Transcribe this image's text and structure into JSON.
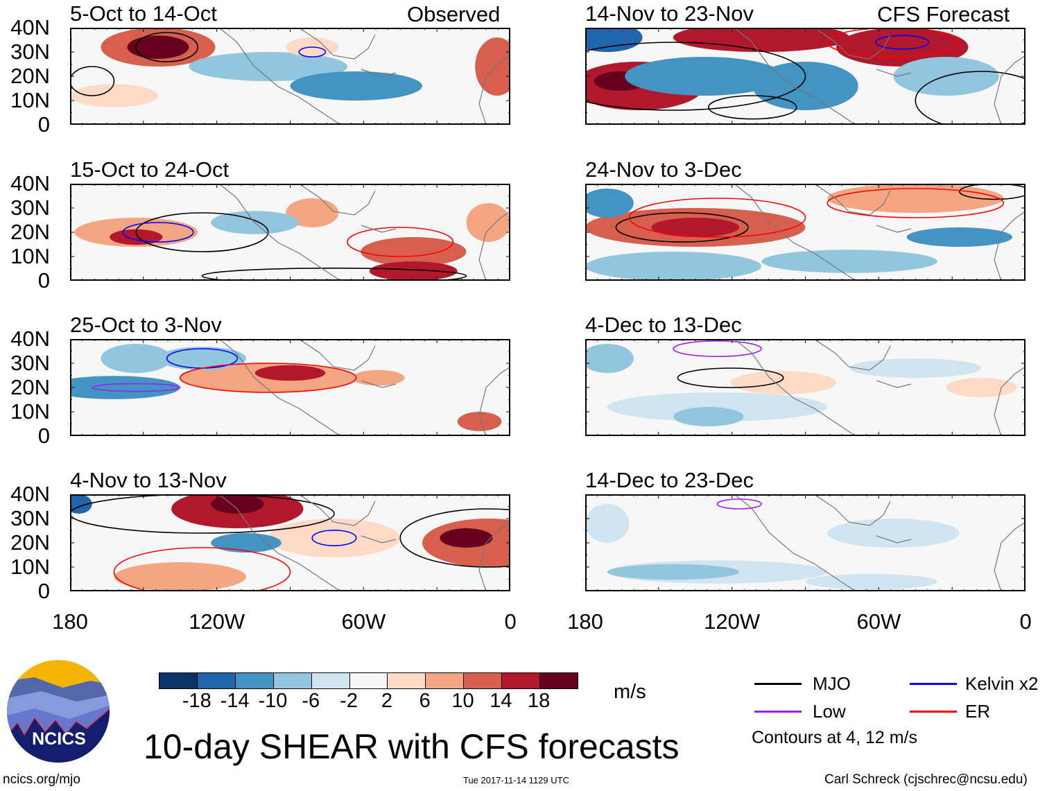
{
  "chart_data": {
    "type": "heatmap",
    "title": "10-day SHEAR with CFS forecasts",
    "units": "m/s",
    "observed_label": "Observed",
    "forecast_label": "CFS Forecast",
    "panels": [
      {
        "title": "5-Oct to 14-Oct",
        "group": "observed"
      },
      {
        "title": "15-Oct to 24-Oct",
        "group": "observed"
      },
      {
        "title": "25-Oct to 3-Nov",
        "group": "observed"
      },
      {
        "title": "4-Nov to 13-Nov",
        "group": "observed"
      },
      {
        "title": "14-Nov to 23-Nov",
        "group": "forecast"
      },
      {
        "title": "24-Nov to 3-Dec",
        "group": "forecast"
      },
      {
        "title": "4-Dec to 13-Dec",
        "group": "forecast"
      },
      {
        "title": "14-Dec to 23-Dec",
        "group": "forecast"
      }
    ],
    "y_ticks": [
      "40N",
      "30N",
      "20N",
      "10N",
      "0"
    ],
    "x_ticks": [
      "180",
      "120W",
      "60W",
      "0"
    ],
    "colorbar": {
      "levels": [
        "-18",
        "-14",
        "-10",
        "-6",
        "-2",
        "2",
        "6",
        "10",
        "14",
        "18"
      ],
      "colors": [
        "#0b3366",
        "#2166ac",
        "#4393c3",
        "#92c5de",
        "#d1e5f0",
        "#f7f7f7",
        "#fddbc7",
        "#f4a582",
        "#d6604d",
        "#b2182b",
        "#67001f"
      ]
    },
    "legend": [
      {
        "label": "MJO",
        "color": "#000000"
      },
      {
        "label": "Kelvin x2",
        "color": "#0000ff"
      },
      {
        "label": "Low",
        "color": "#a020f0"
      },
      {
        "label": "ER",
        "color": "#ff0000"
      }
    ],
    "contour_note": "Contours at 4, 12 m/s"
  },
  "footer": {
    "logo_text": "NCICS",
    "url": "ncics.org/mjo",
    "timestamp": "Tue 2017-11-14 1129 UTC",
    "author": "Carl Schreck (cjschrec@ncsu.edu)"
  }
}
